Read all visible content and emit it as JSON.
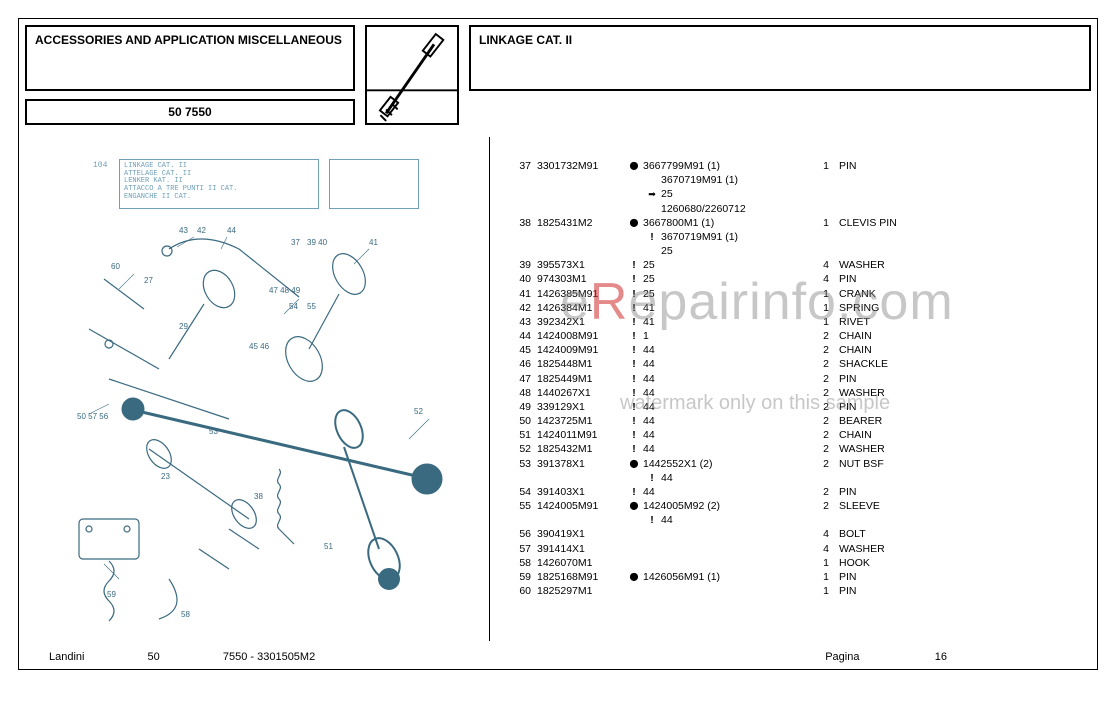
{
  "header": {
    "left_title": "ACCESSORIES AND APPLICATION MISCELLANEOUS",
    "model_code": "50 7550",
    "right_title": "LINKAGE CAT. II"
  },
  "diagram": {
    "ref_number": "104",
    "label_lines": [
      "LINKAGE CAT. II",
      "ATTELAGE CAT. II",
      "LENKER KAT. II",
      "ATTACCO A TRE PUNTI II CAT.",
      "ENGANCHE II CAT."
    ],
    "callouts": [
      "43",
      "42",
      "44",
      "37",
      "39",
      "40",
      "41",
      "60",
      "27",
      "47",
      "48",
      "49",
      "54",
      "55",
      "29",
      "45",
      "46",
      "50",
      "57",
      "56",
      "53",
      "23",
      "38",
      "52",
      "51",
      "58",
      "59"
    ]
  },
  "parts": [
    {
      "ref": "37",
      "part": "3301732M91",
      "sym": "key",
      "sub": "3667799M91  (1)",
      "qty": "1",
      "desc": "PIN",
      "extra": [
        {
          "sym": "",
          "text": "3670719M91  (1)"
        },
        {
          "sym": "arrow",
          "text": "25"
        },
        {
          "sym": "",
          "text": "1260680/2260712"
        }
      ]
    },
    {
      "ref": "38",
      "part": "1825431M2",
      "sym": "key",
      "sub": "3667800M1  (1)",
      "qty": "1",
      "desc": "CLEVIS PIN",
      "extra": [
        {
          "sym": "bang",
          "text": "3670719M91  (1)"
        },
        {
          "sym": "",
          "text": "25"
        }
      ]
    },
    {
      "ref": "39",
      "part": "395573X1",
      "sym": "bang",
      "sub": "25",
      "qty": "4",
      "desc": "WASHER"
    },
    {
      "ref": "40",
      "part": "974303M1",
      "sym": "bang",
      "sub": "25",
      "qty": "4",
      "desc": "PIN"
    },
    {
      "ref": "41",
      "part": "1426385M91",
      "sym": "bang",
      "sub": "25",
      "qty": "1",
      "desc": "CRANK"
    },
    {
      "ref": "42",
      "part": "1426384M1",
      "sym": "bang",
      "sub": "41",
      "qty": "1",
      "desc": "SPRING"
    },
    {
      "ref": "43",
      "part": "392342X1",
      "sym": "bang",
      "sub": "41",
      "qty": "1",
      "desc": "RIVET"
    },
    {
      "ref": "44",
      "part": "1424008M91",
      "sym": "bang",
      "sub": "1",
      "qty": "2",
      "desc": "CHAIN"
    },
    {
      "ref": "45",
      "part": "1424009M91",
      "sym": "bang",
      "sub": "44",
      "qty": "2",
      "desc": "CHAIN"
    },
    {
      "ref": "46",
      "part": "1825448M1",
      "sym": "bang",
      "sub": "44",
      "qty": "2",
      "desc": "SHACKLE"
    },
    {
      "ref": "47",
      "part": "1825449M1",
      "sym": "bang",
      "sub": "44",
      "qty": "2",
      "desc": "PIN"
    },
    {
      "ref": "48",
      "part": "1440267X1",
      "sym": "bang",
      "sub": "44",
      "qty": "2",
      "desc": "WASHER"
    },
    {
      "ref": "49",
      "part": "339129X1",
      "sym": "bang",
      "sub": "44",
      "qty": "2",
      "desc": "PIN"
    },
    {
      "ref": "50",
      "part": "1423725M1",
      "sym": "bang",
      "sub": "44",
      "qty": "2",
      "desc": "BEARER"
    },
    {
      "ref": "51",
      "part": "1424011M91",
      "sym": "bang",
      "sub": "44",
      "qty": "2",
      "desc": "CHAIN"
    },
    {
      "ref": "52",
      "part": "1825432M1",
      "sym": "bang",
      "sub": "44",
      "qty": "2",
      "desc": "WASHER"
    },
    {
      "ref": "53",
      "part": "391378X1",
      "sym": "key",
      "sub": "1442552X1  (2)",
      "qty": "2",
      "desc": "NUT BSF",
      "extra": [
        {
          "sym": "bang",
          "text": "44"
        }
      ]
    },
    {
      "ref": "54",
      "part": "391403X1",
      "sym": "bang",
      "sub": "44",
      "qty": "2",
      "desc": "PIN"
    },
    {
      "ref": "55",
      "part": "1424005M91",
      "sym": "key",
      "sub": "1424005M92  (2)",
      "qty": "2",
      "desc": "SLEEVE",
      "extra": [
        {
          "sym": "bang",
          "text": "44"
        }
      ]
    },
    {
      "ref": "56",
      "part": "390419X1",
      "sym": "",
      "sub": "",
      "qty": "4",
      "desc": "BOLT"
    },
    {
      "ref": "57",
      "part": "391414X1",
      "sym": "",
      "sub": "",
      "qty": "4",
      "desc": "WASHER"
    },
    {
      "ref": "58",
      "part": "1426070M1",
      "sym": "",
      "sub": "",
      "qty": "1",
      "desc": "HOOK"
    },
    {
      "ref": "59",
      "part": "1825168M91",
      "sym": "key",
      "sub": "1426056M91  (1)",
      "qty": "1",
      "desc": "PIN"
    },
    {
      "ref": "60",
      "part": "1825297M1",
      "sym": "",
      "sub": "",
      "qty": "1",
      "desc": "PIN"
    }
  ],
  "footer": {
    "brand": "Landini",
    "col2": "50",
    "col3": "7550 - 3301505M2",
    "page_label": "Pagina",
    "page_num": "16"
  },
  "watermark": {
    "big_pre": "e",
    "big_red": "R",
    "big_post": "epairinfo.com",
    "small": "watermark only on this sample"
  }
}
